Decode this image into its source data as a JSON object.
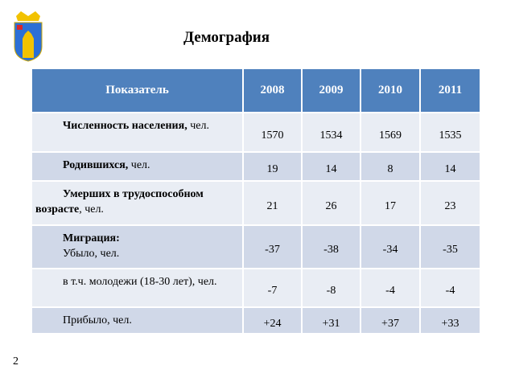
{
  "title": "Демография",
  "page_number": "2",
  "table": {
    "header": [
      "Показатель",
      "2008",
      "2009",
      "2010",
      "2011"
    ],
    "rows": [
      {
        "lines": [
          [
            {
              "text": "Численность населения,",
              "bold": true
            },
            {
              "text": " чел."
            }
          ]
        ],
        "values": [
          1570,
          1534,
          1569,
          1535
        ]
      },
      {
        "lines": [
          [
            {
              "text": "Родившихся,",
              "bold": true
            },
            {
              "text": " чел."
            }
          ]
        ],
        "values": [
          19,
          14,
          8,
          14
        ]
      },
      {
        "lines": [
          [
            {
              "text": "Умерших в трудоспособном возрасте",
              "bold": true
            },
            {
              "text": ", чел."
            }
          ]
        ],
        "values": [
          21,
          26,
          17,
          23
        ]
      },
      {
        "lines": [
          [
            {
              "text": "Миграция:",
              "bold": true
            }
          ],
          [
            {
              "text": "Убыло, чел."
            }
          ]
        ],
        "values": [
          -37,
          -38,
          -34,
          -35
        ]
      },
      {
        "lines": [
          [
            {
              "text": "в т.ч. молодежи (18-30 лет), чел."
            }
          ]
        ],
        "values": [
          -7,
          -8,
          -4,
          -4
        ]
      },
      {
        "lines": [
          [
            {
              "text": "Прибыло, чел."
            }
          ]
        ],
        "values": [
          "+24",
          "+31",
          "+37",
          "+33"
        ]
      }
    ]
  }
}
